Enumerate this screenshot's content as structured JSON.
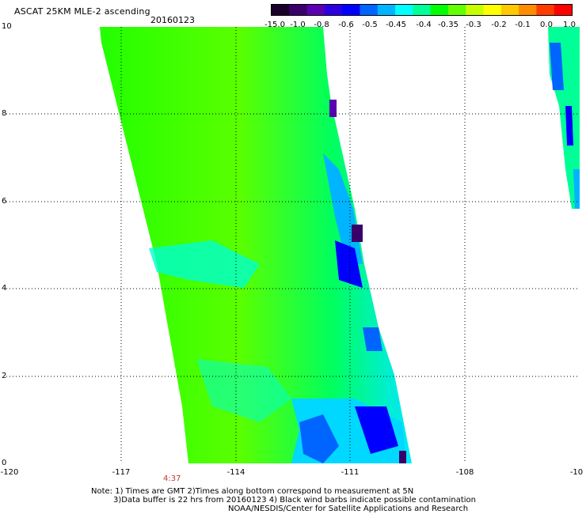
{
  "header": {
    "title": "ASCAT 25KM MLE-2 ascending",
    "date": "20160123"
  },
  "colorbar": {
    "labels": [
      "-15.0",
      "-1.0",
      "-0.8",
      "-0.6",
      "-0.5",
      "-0.45",
      "-0.4",
      "-0.35",
      "-0.3",
      "-0.2",
      "-0.1",
      "0.0",
      "1.0"
    ],
    "colors": [
      "#1a0028",
      "#3a006a",
      "#5a00b0",
      "#2a00e0",
      "#0000ff",
      "#0064ff",
      "#00b4ff",
      "#00ffff",
      "#00ff96",
      "#00ff00",
      "#64ff00",
      "#c8ff00",
      "#ffff00",
      "#ffc800",
      "#ff8c00",
      "#ff3c00",
      "#ff0000"
    ]
  },
  "axes": {
    "x_ticks": [
      "-120",
      "-117",
      "-114",
      "-111",
      "-108",
      "-10"
    ],
    "y_ticks": [
      "10",
      "8",
      "6",
      "4",
      "2",
      "0"
    ]
  },
  "time_label": "4:37",
  "notes": {
    "line1": "Note: 1) Times are GMT 2)Times along bottom correspond to measurement at 5N",
    "line2": "3)Data buffer is 22 hrs from 20160123 4) Black wind barbs indicate possible contamination",
    "line3": "NOAA/NESDIS/Center for Satellite Applications and Research"
  }
}
